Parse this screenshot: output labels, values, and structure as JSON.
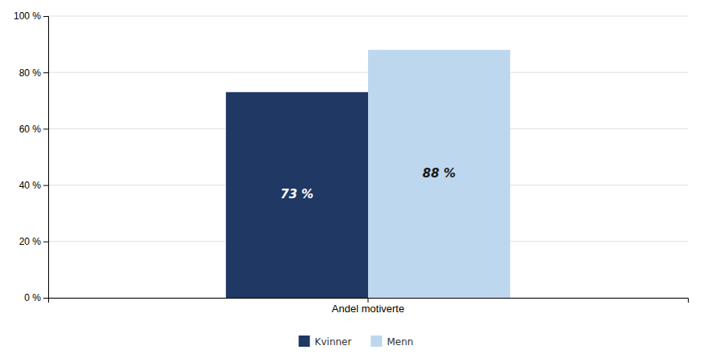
{
  "chart_data": {
    "type": "bar",
    "categories": [
      "Andel motiverte"
    ],
    "series": [
      {
        "name": "Kvinner",
        "color": "#1F3864",
        "values": [
          73
        ],
        "value_labels": [
          "73 %"
        ]
      },
      {
        "name": "Menn",
        "color": "#BDD7EE",
        "values": [
          88
        ],
        "value_labels": [
          "88 %"
        ]
      }
    ],
    "ylim": [
      0,
      100
    ],
    "yticks": [
      {
        "value": 0,
        "label": "0 %"
      },
      {
        "value": 20,
        "label": "20 %"
      },
      {
        "value": 40,
        "label": "40 %"
      },
      {
        "value": 60,
        "label": "60 %"
      },
      {
        "value": 80,
        "label": "80 %"
      },
      {
        "value": 100,
        "label": "100 %"
      }
    ],
    "grid": true,
    "legend": "bottom",
    "data_labels": true
  }
}
